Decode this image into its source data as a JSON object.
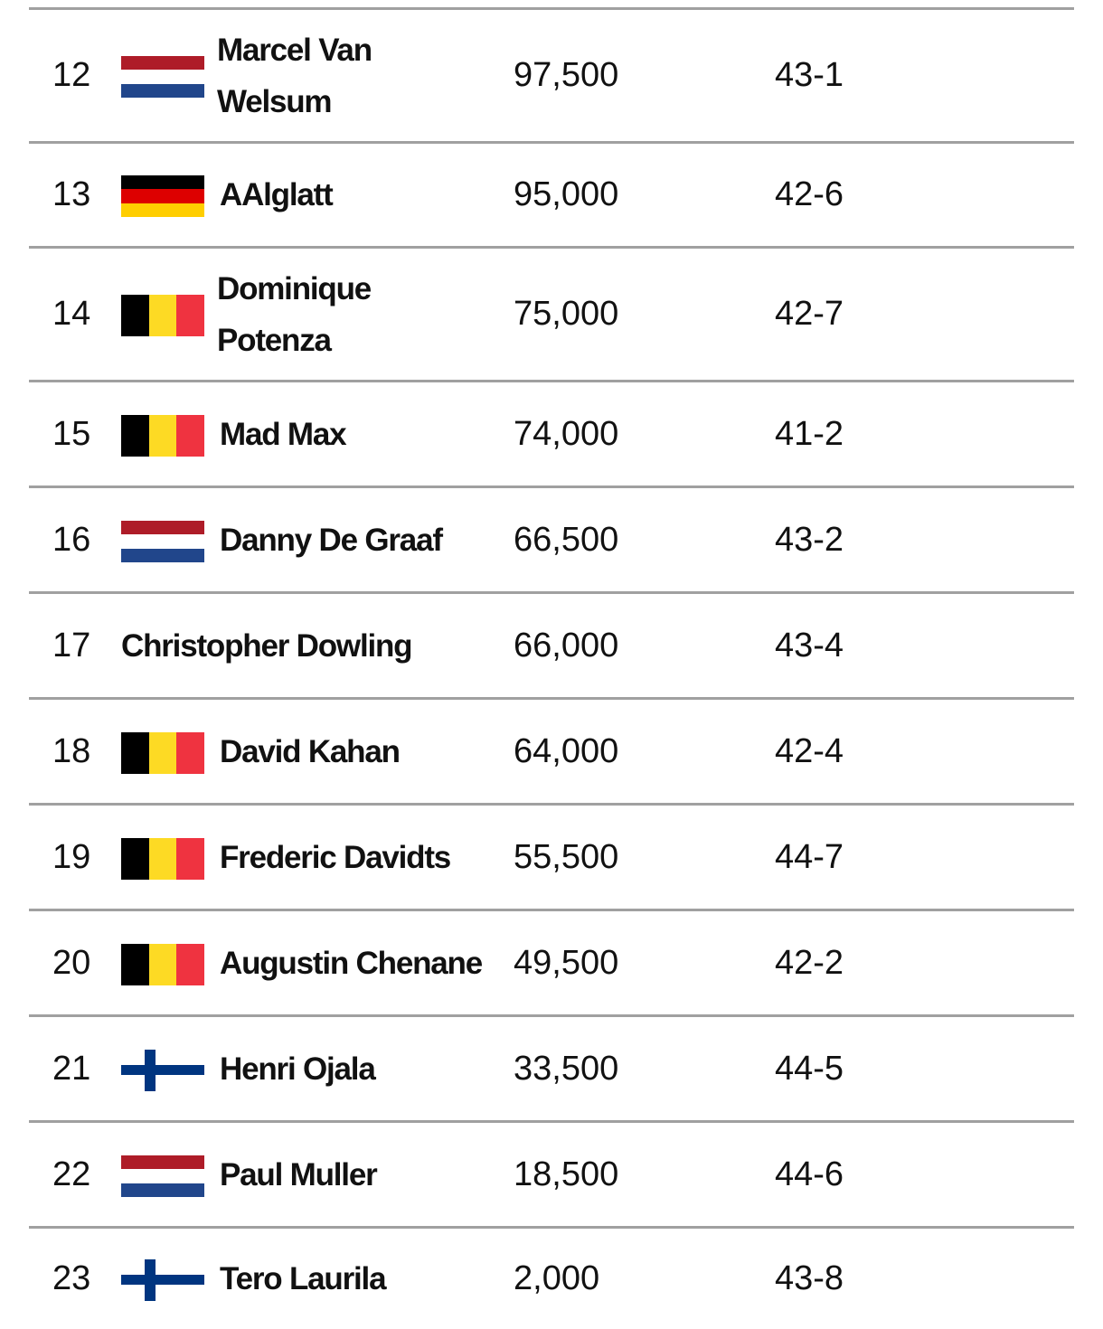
{
  "rows": [
    {
      "rank": "12",
      "name": "Marcel Van Welsum",
      "points": "97,500",
      "record": "43-1"
    },
    {
      "rank": "13",
      "name": "AAlglatt",
      "points": "95,000",
      "record": "42-6"
    },
    {
      "rank": "14",
      "name": "Dominique Potenza",
      "points": "75,000",
      "record": "42-7"
    },
    {
      "rank": "15",
      "name": "Mad Max",
      "points": "74,000",
      "record": "41-2"
    },
    {
      "rank": "16",
      "name": "Danny De Graaf",
      "points": "66,500",
      "record": "43-2"
    },
    {
      "rank": "17",
      "name": "Christopher Dowling",
      "points": "66,000",
      "record": "43-4"
    },
    {
      "rank": "18",
      "name": "David Kahan",
      "points": "64,000",
      "record": "42-4"
    },
    {
      "rank": "19",
      "name": "Frederic Davidts",
      "points": "55,500",
      "record": "44-7"
    },
    {
      "rank": "20",
      "name": "Augustin Chenane",
      "points": "49,500",
      "record": "42-2"
    },
    {
      "rank": "21",
      "name": "Henri Ojala",
      "points": "33,500",
      "record": "44-5"
    },
    {
      "rank": "22",
      "name": "Paul Muller",
      "points": "18,500",
      "record": "44-6"
    },
    {
      "rank": "23",
      "name": "Tero Laurila",
      "points": "2,000",
      "record": "43-8"
    }
  ]
}
